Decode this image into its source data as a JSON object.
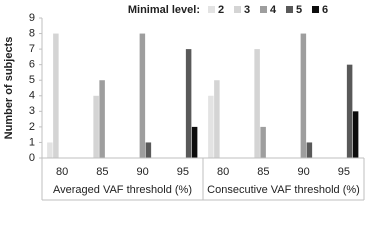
{
  "chart_data": {
    "type": "bar",
    "legend_title": "Minimal level:",
    "y_label": "Number of subjects",
    "categories": [
      "80",
      "85",
      "90",
      "95",
      "80",
      "85",
      "90",
      "95"
    ],
    "groups": [
      "Averaged VAF threshold (%)",
      "Consecutive VAF threshold (%)"
    ],
    "series": [
      {
        "name": "2",
        "color": "#e3e3e3",
        "values": [
          1,
          0,
          0,
          0,
          4,
          0,
          0,
          0
        ]
      },
      {
        "name": "3",
        "color": "#d4d4d4",
        "values": [
          8,
          4,
          0,
          0,
          5,
          7,
          0,
          0
        ]
      },
      {
        "name": "4",
        "color": "#9e9e9e",
        "values": [
          0,
          5,
          8,
          0,
          0,
          2,
          8,
          0
        ]
      },
      {
        "name": "5",
        "color": "#595959",
        "values": [
          0,
          0,
          1,
          7,
          0,
          0,
          1,
          6
        ]
      },
      {
        "name": "6",
        "color": "#0d0d0d",
        "values": [
          0,
          0,
          0,
          2,
          0,
          0,
          0,
          3
        ]
      }
    ],
    "ylim": [
      0,
      9
    ],
    "yticks": [
      0,
      1,
      2,
      3,
      4,
      5,
      6,
      7,
      8,
      9
    ],
    "legend": "top"
  }
}
